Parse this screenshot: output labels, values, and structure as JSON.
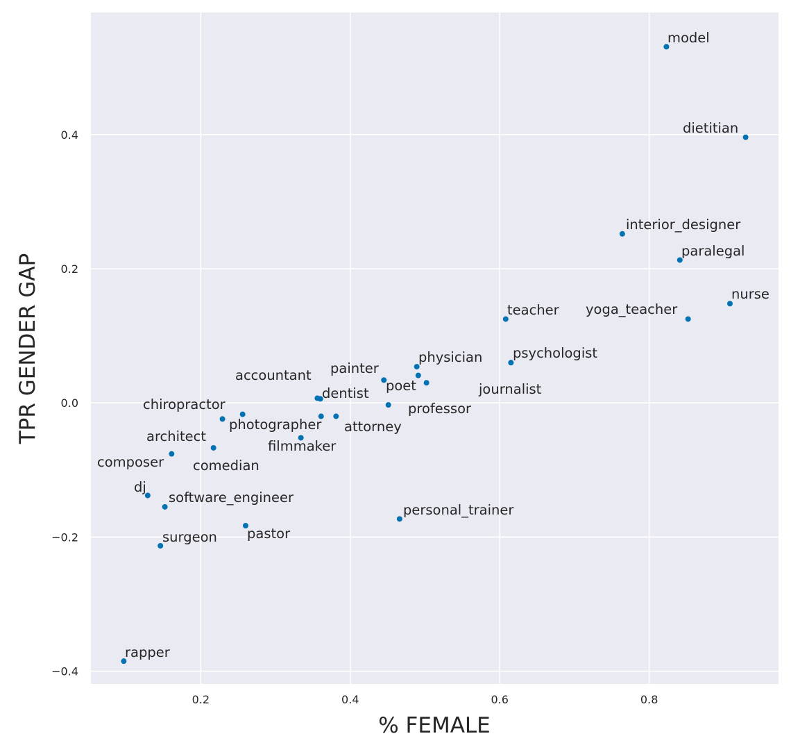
{
  "chart_data": {
    "type": "scatter",
    "title": "",
    "xlabel": "% FEMALE",
    "ylabel": "TPR GENDER GAP",
    "xlim": [
      0.053,
      0.973
    ],
    "ylim": [
      -0.419,
      0.582
    ],
    "xticks": [
      0.2,
      0.4,
      0.6,
      0.8
    ],
    "xtick_labels": [
      "0.2",
      "0.4",
      "0.6",
      "0.8"
    ],
    "yticks": [
      -0.4,
      -0.2,
      0.0,
      0.2,
      0.4
    ],
    "ytick_labels": [
      "−0.4",
      "−0.2",
      "0.0",
      "0.2",
      "0.4"
    ],
    "grid": true,
    "background_color": "#eaeaf2",
    "point_color": "#0072b2",
    "points": [
      {
        "label": "model",
        "x": 0.823,
        "y": 0.531
      },
      {
        "label": "dietitian",
        "x": 0.929,
        "y": 0.396
      },
      {
        "label": "interior_designer",
        "x": 0.764,
        "y": 0.252
      },
      {
        "label": "paralegal",
        "x": 0.841,
        "y": 0.213
      },
      {
        "label": "nurse",
        "x": 0.908,
        "y": 0.148
      },
      {
        "label": "yoga_teacher",
        "x": 0.852,
        "y": 0.125
      },
      {
        "label": "teacher",
        "x": 0.608,
        "y": 0.125
      },
      {
        "label": "psychologist",
        "x": 0.615,
        "y": 0.06
      },
      {
        "label": "physician",
        "x": 0.489,
        "y": 0.054
      },
      {
        "label": "poet",
        "x": 0.491,
        "y": 0.041
      },
      {
        "label": "journalist",
        "x": 0.502,
        "y": 0.03
      },
      {
        "label": "painter",
        "x": 0.445,
        "y": 0.034
      },
      {
        "label": "professor",
        "x": 0.451,
        "y": -0.003
      },
      {
        "label": "accountant",
        "x": 0.356,
        "y": 0.007
      },
      {
        "label": "dentist",
        "x": 0.36,
        "y": 0.006
      },
      {
        "label": "attorney",
        "x": 0.381,
        "y": -0.02
      },
      {
        "label": "photographer",
        "x": 0.361,
        "y": -0.02
      },
      {
        "label": "filmmaker",
        "x": 0.334,
        "y": -0.052
      },
      {
        "label": "chiropractor",
        "x": 0.256,
        "y": -0.017
      },
      {
        "label": "architect",
        "x": 0.229,
        "y": -0.024
      },
      {
        "label": "comedian",
        "x": 0.217,
        "y": -0.067
      },
      {
        "label": "composer",
        "x": 0.161,
        "y": -0.076
      },
      {
        "label": "dj",
        "x": 0.129,
        "y": -0.138
      },
      {
        "label": "software_engineer",
        "x": 0.152,
        "y": -0.155
      },
      {
        "label": "surgeon",
        "x": 0.146,
        "y": -0.213
      },
      {
        "label": "pastor",
        "x": 0.26,
        "y": -0.183
      },
      {
        "label": "personal_trainer",
        "x": 0.466,
        "y": -0.173
      },
      {
        "label": "rapper",
        "x": 0.097,
        "y": -0.385
      }
    ]
  }
}
